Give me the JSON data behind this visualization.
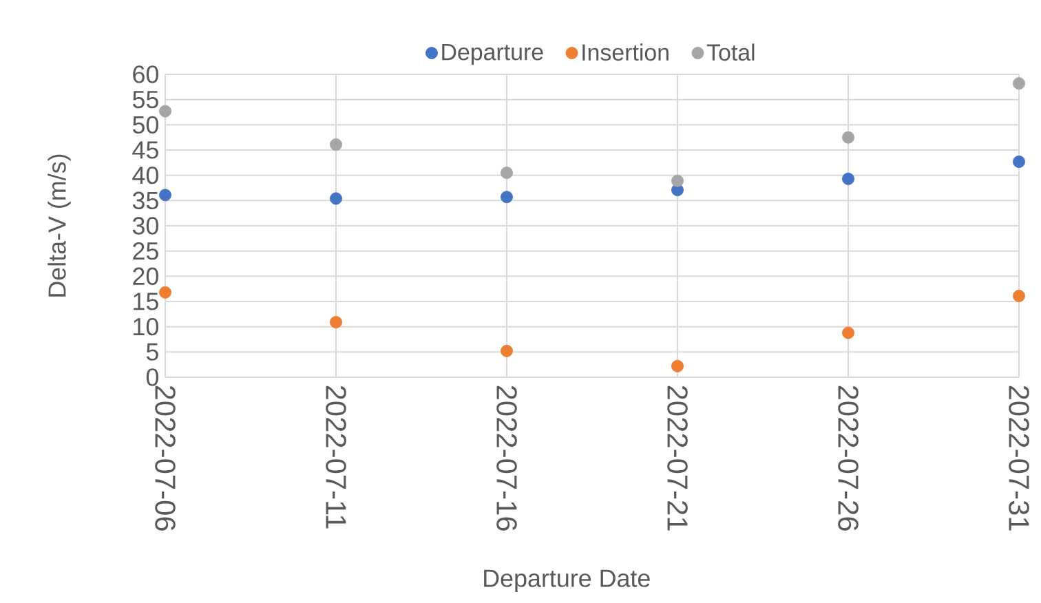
{
  "chart_data": {
    "type": "scatter",
    "xlabel": "Departure Date",
    "ylabel": "Delta-V (m/s)",
    "categories": [
      "2022-07-06",
      "2022-07-11",
      "2022-07-16",
      "2022-07-21",
      "2022-07-26",
      "2022-07-31"
    ],
    "series": [
      {
        "name": "Departure",
        "color": "#4472c4",
        "values": [
          36.1,
          35.4,
          35.7,
          37.1,
          39.3,
          42.7
        ]
      },
      {
        "name": "Insertion",
        "color": "#ed7d31",
        "values": [
          16.8,
          10.9,
          5.2,
          2.2,
          8.8,
          16.1
        ]
      },
      {
        "name": "Total",
        "color": "#a5a5a5",
        "values": [
          52.7,
          46.1,
          40.5,
          38.9,
          47.5,
          58.2
        ]
      }
    ],
    "ylim": [
      0,
      60
    ],
    "yticks": [
      0,
      5,
      10,
      15,
      20,
      25,
      30,
      35,
      40,
      45,
      50,
      55,
      60
    ],
    "grid": true,
    "legend": "top",
    "marker": "circle"
  }
}
